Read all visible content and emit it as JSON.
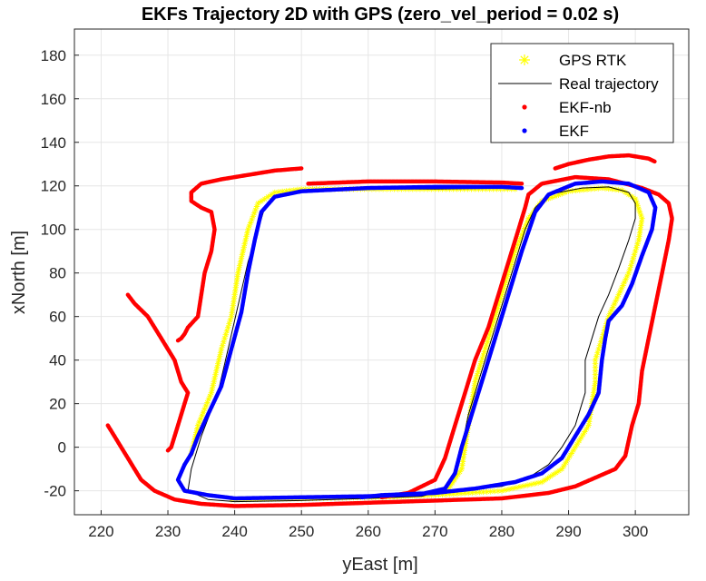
{
  "chart_data": {
    "type": "line",
    "title": "EKFs Trajectory 2D with GPS (zero_vel_period = 0.02 s)",
    "xlabel": "yEast [m]",
    "ylabel": "xNorth [m]",
    "xlim": [
      216,
      308
    ],
    "ylim": [
      -31,
      192
    ],
    "xticks": [
      220,
      230,
      240,
      250,
      260,
      270,
      280,
      290,
      300
    ],
    "yticks": [
      -20,
      0,
      20,
      40,
      60,
      80,
      100,
      120,
      140,
      160,
      180
    ],
    "grid": true,
    "legend_position": "top-right",
    "series": [
      {
        "name": "GPS RTK",
        "style": "asterisk",
        "color": "#ffff00",
        "segments": [
          [
            [
              233.5,
              -3
            ],
            [
              234.5,
              10
            ],
            [
              236.5,
              25
            ],
            [
              238,
              45
            ],
            [
              239.5,
              60
            ],
            [
              240.5,
              80
            ],
            [
              242,
              100
            ],
            [
              243.5,
              112
            ],
            [
              246,
              117
            ],
            [
              250,
              118.5
            ],
            [
              260,
              118.5
            ],
            [
              270,
              118.5
            ],
            [
              282,
              118.5
            ]
          ],
          [
            [
              239.5,
              -24
            ],
            [
              250,
              -23.5
            ],
            [
              260,
              -23
            ],
            [
              268,
              -22
            ],
            [
              272,
              -19
            ],
            [
              274,
              -10
            ],
            [
              275,
              10
            ],
            [
              276,
              30
            ],
            [
              278,
              50
            ],
            [
              280,
              70
            ],
            [
              282,
              90
            ],
            [
              284,
              105
            ],
            [
              286,
              113
            ],
            [
              290,
              117.5
            ],
            [
              295,
              119
            ],
            [
              298,
              118
            ],
            [
              300,
              114
            ],
            [
              301,
              105
            ],
            [
              300.5,
              95
            ],
            [
              299,
              80
            ],
            [
              297.5,
              70
            ],
            [
              296,
              60
            ],
            [
              295,
              50
            ],
            [
              294,
              40
            ],
            [
              294,
              30
            ],
            [
              293.5,
              20
            ],
            [
              293,
              10
            ],
            [
              291,
              0
            ],
            [
              289,
              -10
            ],
            [
              286,
              -16
            ],
            [
              280,
              -20
            ],
            [
              270,
              -22
            ],
            [
              260,
              -23
            ]
          ]
        ]
      },
      {
        "name": "Real trajectory",
        "style": "line",
        "color": "#000000",
        "segments": [
          [
            [
              233,
              -20
            ],
            [
              233.5,
              -10
            ],
            [
              235,
              5
            ],
            [
              237.5,
              25
            ],
            [
              239,
              45
            ],
            [
              240.5,
              65
            ],
            [
              242,
              85
            ],
            [
              243.5,
              100
            ],
            [
              244.5,
              110
            ],
            [
              246.5,
              116
            ],
            [
              250,
              118
            ],
            [
              260,
              118.5
            ],
            [
              270,
              118.5
            ],
            [
              282,
              119
            ],
            [
              282.5,
              118.5
            ]
          ],
          [
            [
              233,
              -20
            ],
            [
              236,
              -24
            ],
            [
              240,
              -25
            ],
            [
              250,
              -24.5
            ],
            [
              260,
              -23.5
            ],
            [
              268,
              -22.5
            ],
            [
              271,
              -20
            ],
            [
              273,
              -12
            ],
            [
              274,
              0
            ],
            [
              275,
              15
            ],
            [
              276.5,
              30
            ],
            [
              278,
              45
            ],
            [
              280,
              65
            ],
            [
              282,
              85
            ],
            [
              283.5,
              100
            ],
            [
              285,
              110
            ],
            [
              287,
              116
            ],
            [
              292,
              119
            ],
            [
              296,
              119.5
            ],
            [
              299,
              117
            ],
            [
              300,
              112
            ],
            [
              300,
              105
            ],
            [
              299,
              95
            ],
            [
              297.5,
              82
            ],
            [
              296,
              70
            ],
            [
              294.5,
              60
            ],
            [
              293.5,
              50
            ],
            [
              292.5,
              40
            ],
            [
              292.5,
              25
            ],
            [
              291,
              10
            ],
            [
              289,
              0
            ],
            [
              287,
              -8
            ],
            [
              284,
              -14
            ],
            [
              280,
              -18
            ],
            [
              270,
              -21
            ],
            [
              261,
              -23
            ]
          ]
        ]
      },
      {
        "name": "EKF-nb",
        "style": "dots",
        "color": "#ff0000",
        "segments": [
          [
            [
              250,
              128
            ],
            [
              246,
              127
            ],
            [
              242,
              125
            ],
            [
              238,
              123
            ],
            [
              235,
              121
            ],
            [
              233.5,
              117
            ],
            [
              233.5,
              113
            ],
            [
              235,
              110
            ],
            [
              236.5,
              108
            ],
            [
              237,
              100
            ],
            [
              236.5,
              90
            ],
            [
              235.5,
              80
            ],
            [
              235,
              70
            ],
            [
              234.5,
              60
            ],
            [
              233,
              55
            ],
            [
              232.5,
              52
            ],
            [
              232,
              50
            ],
            [
              231.5,
              49
            ]
          ],
          [
            [
              224,
              70
            ],
            [
              225,
              66
            ],
            [
              227,
              60
            ],
            [
              229,
              50
            ],
            [
              231,
              40
            ],
            [
              232,
              30
            ],
            [
              233,
              25
            ],
            [
              232.5,
              20
            ],
            [
              231.5,
              10
            ],
            [
              230.5,
              0
            ],
            [
              230,
              -1.5
            ]
          ],
          [
            [
              221,
              10
            ],
            [
              222,
              5
            ],
            [
              223,
              0
            ],
            [
              224,
              -5
            ],
            [
              225,
              -10
            ],
            [
              226,
              -15
            ],
            [
              228,
              -20
            ],
            [
              231,
              -24
            ],
            [
              235,
              -26
            ],
            [
              240,
              -27
            ],
            [
              250,
              -26.5
            ],
            [
              260,
              -25.5
            ],
            [
              270,
              -24.5
            ],
            [
              280,
              -23.5
            ],
            [
              287,
              -21
            ],
            [
              291,
              -18
            ],
            [
              294,
              -14
            ],
            [
              297,
              -10
            ],
            [
              298.5,
              -4
            ],
            [
              299.5,
              10
            ],
            [
              300.5,
              20
            ],
            [
              301,
              35
            ],
            [
              302,
              50
            ],
            [
              303,
              65
            ],
            [
              304,
              80
            ],
            [
              305,
              95
            ],
            [
              305.5,
              105
            ],
            [
              305,
              112
            ],
            [
              303.5,
              116
            ],
            [
              301,
              119
            ],
            [
              296,
              123
            ],
            [
              291,
              124
            ],
            [
              286,
              121
            ],
            [
              284,
              116
            ],
            [
              283.5,
              110
            ],
            [
              282.5,
              100
            ],
            [
              281,
              85
            ],
            [
              279.5,
              70
            ],
            [
              278,
              55
            ],
            [
              276,
              40
            ],
            [
              274.5,
              25
            ],
            [
              273,
              10
            ],
            [
              271.5,
              -5
            ],
            [
              270,
              -15
            ],
            [
              266,
              -21
            ],
            [
              262,
              -23
            ]
          ],
          [
            [
              251,
              121
            ],
            [
              260,
              122
            ],
            [
              270,
              122
            ],
            [
              280,
              121.5
            ],
            [
              283,
              121
            ]
          ],
          [
            [
              288,
              128
            ],
            [
              290,
              130
            ],
            [
              293,
              132
            ],
            [
              296,
              133.5
            ],
            [
              299,
              134
            ],
            [
              302,
              132.5
            ],
            [
              303,
              131
            ]
          ]
        ]
      },
      {
        "name": "EKF",
        "style": "dots",
        "color": "#0000ff",
        "segments": [
          [
            [
              233.5,
              -3
            ],
            [
              234.5,
              5
            ],
            [
              236,
              15
            ],
            [
              238,
              28
            ],
            [
              239.5,
              45
            ],
            [
              241,
              62
            ],
            [
              242,
              80
            ],
            [
              243,
              95
            ],
            [
              244,
              108
            ],
            [
              246,
              115
            ],
            [
              250,
              117.5
            ],
            [
              260,
              119
            ],
            [
              270,
              119.5
            ],
            [
              280,
              119.5
            ],
            [
              283,
              119
            ]
          ],
          [
            [
              233.5,
              -3
            ],
            [
              232.5,
              -8
            ],
            [
              231.5,
              -15
            ],
            [
              232.5,
              -20
            ],
            [
              236,
              -22
            ],
            [
              240,
              -23.5
            ],
            [
              250,
              -23
            ],
            [
              260,
              -22.5
            ],
            [
              268,
              -21.5
            ],
            [
              271.5,
              -19
            ],
            [
              273,
              -12
            ],
            [
              274,
              0
            ],
            [
              275.5,
              15
            ],
            [
              277,
              30
            ],
            [
              279,
              50
            ],
            [
              281,
              70
            ],
            [
              283,
              90
            ],
            [
              285,
              108
            ],
            [
              287,
              116
            ],
            [
              291,
              121
            ],
            [
              295,
              122
            ],
            [
              299,
              121
            ],
            [
              302,
              117
            ],
            [
              303,
              110
            ],
            [
              302.5,
              100
            ],
            [
              301,
              88
            ],
            [
              299.5,
              75
            ],
            [
              298,
              65
            ],
            [
              296,
              58
            ],
            [
              295.5,
              50
            ],
            [
              295,
              40
            ],
            [
              294.5,
              25
            ],
            [
              293,
              15
            ],
            [
              291,
              5
            ],
            [
              289,
              -5
            ],
            [
              286,
              -12
            ],
            [
              282,
              -16
            ],
            [
              276,
              -19
            ],
            [
              270,
              -21
            ],
            [
              262,
              -22
            ],
            [
              259,
              -23
            ]
          ]
        ]
      }
    ]
  }
}
